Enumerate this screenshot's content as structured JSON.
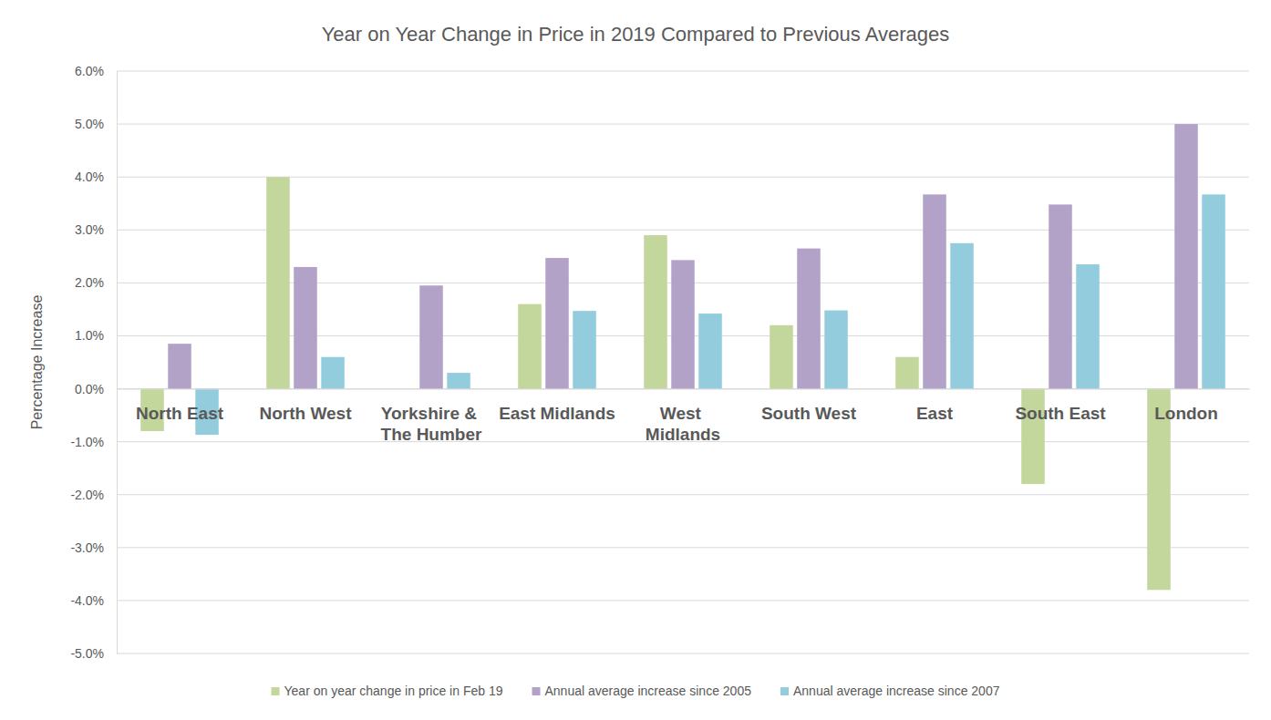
{
  "chart_data": {
    "type": "bar",
    "title": "Year on Year Change in Price in 2019 Compared to Previous Averages",
    "y_label": "Percentage Increase",
    "categories": [
      "North East",
      "North West",
      "Yorkshire & The Humber",
      "East Midlands",
      "West Midlands",
      "South West",
      "East",
      "South East",
      "London"
    ],
    "series": [
      {
        "name": "Year on year change in price in Feb 19",
        "color": "#c3d69b",
        "values": [
          -0.8,
          4.0,
          0.0,
          1.6,
          2.9,
          1.2,
          0.6,
          -1.8,
          -3.8
        ]
      },
      {
        "name": "Annual average increase since 2005",
        "color": "#b3a2c7",
        "values": [
          0.85,
          2.3,
          1.95,
          2.47,
          2.43,
          2.65,
          3.67,
          3.48,
          5.0
        ]
      },
      {
        "name": "Annual average increase since 2007",
        "color": "#93cddd",
        "values": [
          -0.87,
          0.6,
          0.3,
          1.47,
          1.42,
          1.48,
          2.75,
          2.35,
          3.67
        ]
      }
    ],
    "ylim": [
      -5,
      6
    ],
    "yticks": [
      {
        "value": -5,
        "label": "-5.0%"
      },
      {
        "value": -4,
        "label": "-4.0%"
      },
      {
        "value": -3,
        "label": "-3.0%"
      },
      {
        "value": -2,
        "label": "-2.0%"
      },
      {
        "value": -1,
        "label": "-1.0%"
      },
      {
        "value": 0,
        "label": "0.0%"
      },
      {
        "value": 1,
        "label": "1.0%"
      },
      {
        "value": 2,
        "label": "2.0%"
      },
      {
        "value": 3,
        "label": "3.0%"
      },
      {
        "value": 4,
        "label": "4.0%"
      },
      {
        "value": 5,
        "label": "5.0%"
      },
      {
        "value": 6,
        "label": "6.0%"
      }
    ],
    "grid": true,
    "legend": "bottom"
  }
}
